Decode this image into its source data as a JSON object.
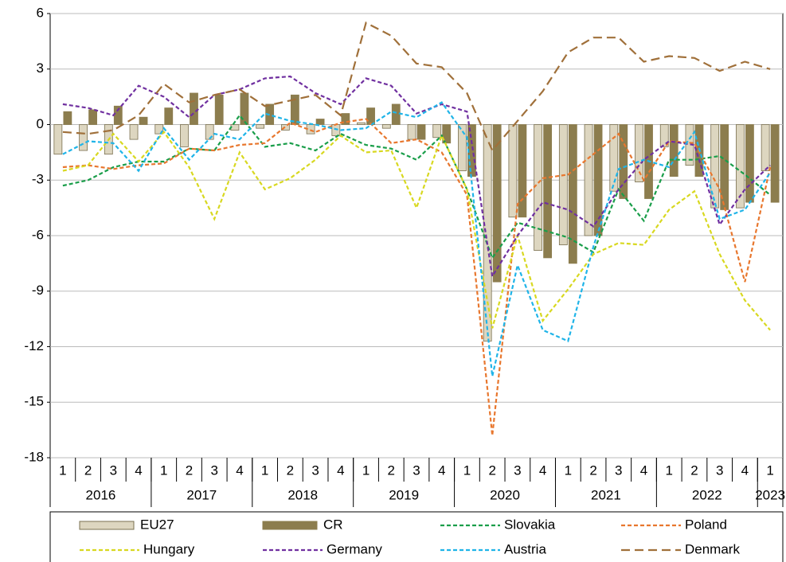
{
  "chart_data": {
    "type": "combo",
    "categories": [
      "1",
      "2",
      "3",
      "4",
      "1",
      "2",
      "3",
      "4",
      "1",
      "2",
      "3",
      "4",
      "1",
      "2",
      "3",
      "4",
      "1",
      "2",
      "3",
      "4",
      "1",
      "2",
      "3",
      "4",
      "1",
      "2",
      "3",
      "4",
      "1"
    ],
    "x_groups": [
      {
        "label": "2016",
        "count": 4
      },
      {
        "label": "2017",
        "count": 4
      },
      {
        "label": "2018",
        "count": 4
      },
      {
        "label": "2019",
        "count": 4
      },
      {
        "label": "2020",
        "count": 4
      },
      {
        "label": "2021",
        "count": 4
      },
      {
        "label": "2022",
        "count": 4
      },
      {
        "label": "2023",
        "count": 1
      }
    ],
    "ylim": [
      -18,
      6
    ],
    "yticks": [
      -18,
      -15,
      -12,
      -9,
      -6,
      -3,
      0,
      3,
      6
    ],
    "grid": true,
    "series": [
      {
        "name": "EU27",
        "type": "bar",
        "color": "#ddd6c0",
        "values": [
          -1.6,
          -1.4,
          -1.6,
          -0.8,
          -0.5,
          -1.2,
          -0.8,
          -0.3,
          -0.2,
          -0.3,
          -0.5,
          -0.6,
          0.1,
          -0.2,
          -0.8,
          -0.7,
          -2.5,
          -11.7,
          -5.0,
          -6.8,
          -6.5,
          -6.0,
          -3.6,
          -3.1,
          -1.2,
          -2.2,
          -4.5,
          -4.5,
          -2.5
        ]
      },
      {
        "name": "CR",
        "type": "bar",
        "color": "#8c7d4e",
        "values": [
          0.7,
          0.8,
          1.0,
          0.4,
          0.9,
          1.7,
          1.6,
          1.7,
          1.1,
          1.6,
          0.3,
          0.6,
          0.9,
          1.1,
          -0.8,
          -1.0,
          -2.8,
          -8.5,
          -5.0,
          -7.2,
          -7.5,
          -6.0,
          -4.0,
          -4.0,
          -2.8,
          -2.8,
          -4.6,
          -4.2,
          -4.2
        ]
      },
      {
        "name": "Slovakia",
        "type": "line",
        "color": "#1a9e4a",
        "values": [
          -3.3,
          -3.0,
          -2.3,
          -2.0,
          -2.0,
          -1.3,
          -1.4,
          0.5,
          -1.2,
          -1.0,
          -1.4,
          -0.5,
          -1.1,
          -1.3,
          -1.9,
          -0.6,
          -3.5,
          -7.2,
          -5.3,
          -5.7,
          -6.1,
          -6.9,
          -3.5,
          -5.2,
          -1.9,
          -1.9,
          -1.7,
          -2.7,
          -3.8
        ]
      },
      {
        "name": "Poland",
        "type": "line",
        "color": "#e8772e",
        "values": [
          -2.3,
          -2.2,
          -2.4,
          -2.2,
          -2.1,
          -1.3,
          -1.4,
          -1.1,
          -1.0,
          0.1,
          -0.4,
          0.1,
          0.3,
          -1.0,
          -0.8,
          -1.5,
          -3.8,
          -16.8,
          -4.3,
          -2.9,
          -2.7,
          -1.6,
          -0.5,
          -3.0,
          -0.9,
          -1.0,
          -3.5,
          -8.5,
          -2.3
        ]
      },
      {
        "name": "Hungary",
        "type": "line",
        "color": "#d8d820",
        "values": [
          -2.5,
          -2.2,
          -0.5,
          -2.0,
          -0.4,
          -2.3,
          -5.1,
          -1.5,
          -3.5,
          -2.9,
          -1.9,
          -0.6,
          -1.5,
          -1.4,
          -4.5,
          -0.6,
          -3.5,
          -11.0,
          -6.0,
          -10.6,
          -8.9,
          -7.0,
          -6.4,
          -6.5,
          -4.6,
          -3.6,
          -7.0,
          -9.5,
          -11.1
        ]
      },
      {
        "name": "Germany",
        "type": "line",
        "color": "#7030a0",
        "values": [
          1.1,
          0.9,
          0.5,
          2.1,
          1.5,
          0.4,
          1.6,
          1.9,
          2.5,
          2.6,
          1.7,
          1.1,
          2.5,
          2.1,
          0.6,
          1.1,
          0.7,
          -8.2,
          -6.0,
          -4.2,
          -4.6,
          -5.5,
          -3.5,
          -1.9,
          -0.9,
          -1.1,
          -5.4,
          -3.5,
          -2.2
        ]
      },
      {
        "name": "Austria",
        "type": "line",
        "color": "#1fb4e8",
        "values": [
          -1.6,
          -0.9,
          -1.0,
          -2.5,
          -0.2,
          -1.9,
          -0.5,
          -0.8,
          0.6,
          0.2,
          0.0,
          -0.3,
          -0.2,
          0.7,
          0.4,
          1.2,
          -0.7,
          -13.6,
          -7.6,
          -11.1,
          -11.7,
          -6.6,
          -2.4,
          -1.9,
          -2.3,
          -0.4,
          -5.1,
          -4.6,
          -2.6
        ]
      },
      {
        "name": "Denmark",
        "type": "line",
        "color": "#a0703a",
        "long_dash": true,
        "values": [
          -0.4,
          -0.5,
          -0.3,
          0.5,
          2.2,
          1.2,
          1.6,
          1.9,
          1.0,
          1.3,
          1.6,
          0.5,
          5.5,
          4.8,
          3.3,
          3.1,
          1.7,
          -1.4,
          0.2,
          1.8,
          3.9,
          4.7,
          4.7,
          3.4,
          3.7,
          3.6,
          2.9,
          3.4,
          3.0
        ]
      }
    ]
  }
}
